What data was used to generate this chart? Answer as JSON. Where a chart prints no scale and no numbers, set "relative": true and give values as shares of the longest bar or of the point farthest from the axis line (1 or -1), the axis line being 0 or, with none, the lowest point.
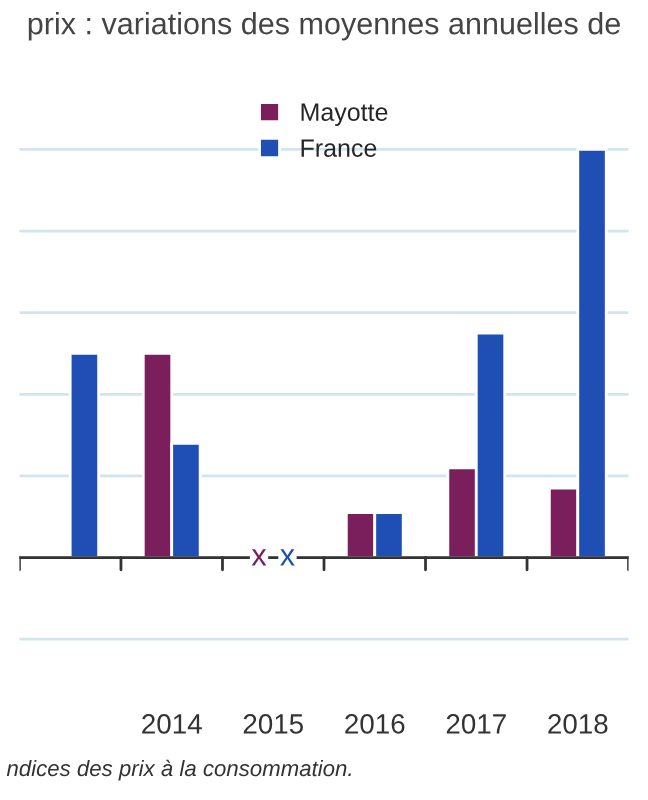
{
  "chart_data": {
    "type": "bar",
    "title": "prix : variations des moyennes annuelles de",
    "relative": true,
    "categories": [
      null,
      "2014",
      "2015",
      "2016",
      "2017",
      "2018"
    ],
    "series": [
      {
        "name": "Mayotte",
        "color": "#7a1f5c",
        "values": [
          null,
          0.5,
          null,
          0.11,
          0.22,
          0.17
        ]
      },
      {
        "name": "France",
        "color": "#1f4fb5",
        "values": [
          0.5,
          0.28,
          null,
          0.11,
          0.55,
          1
        ]
      }
    ],
    "annotations": [
      "x",
      "x",
      "ndices des prix à la consommation."
    ],
    "grid": "y",
    "legend": "top"
  }
}
